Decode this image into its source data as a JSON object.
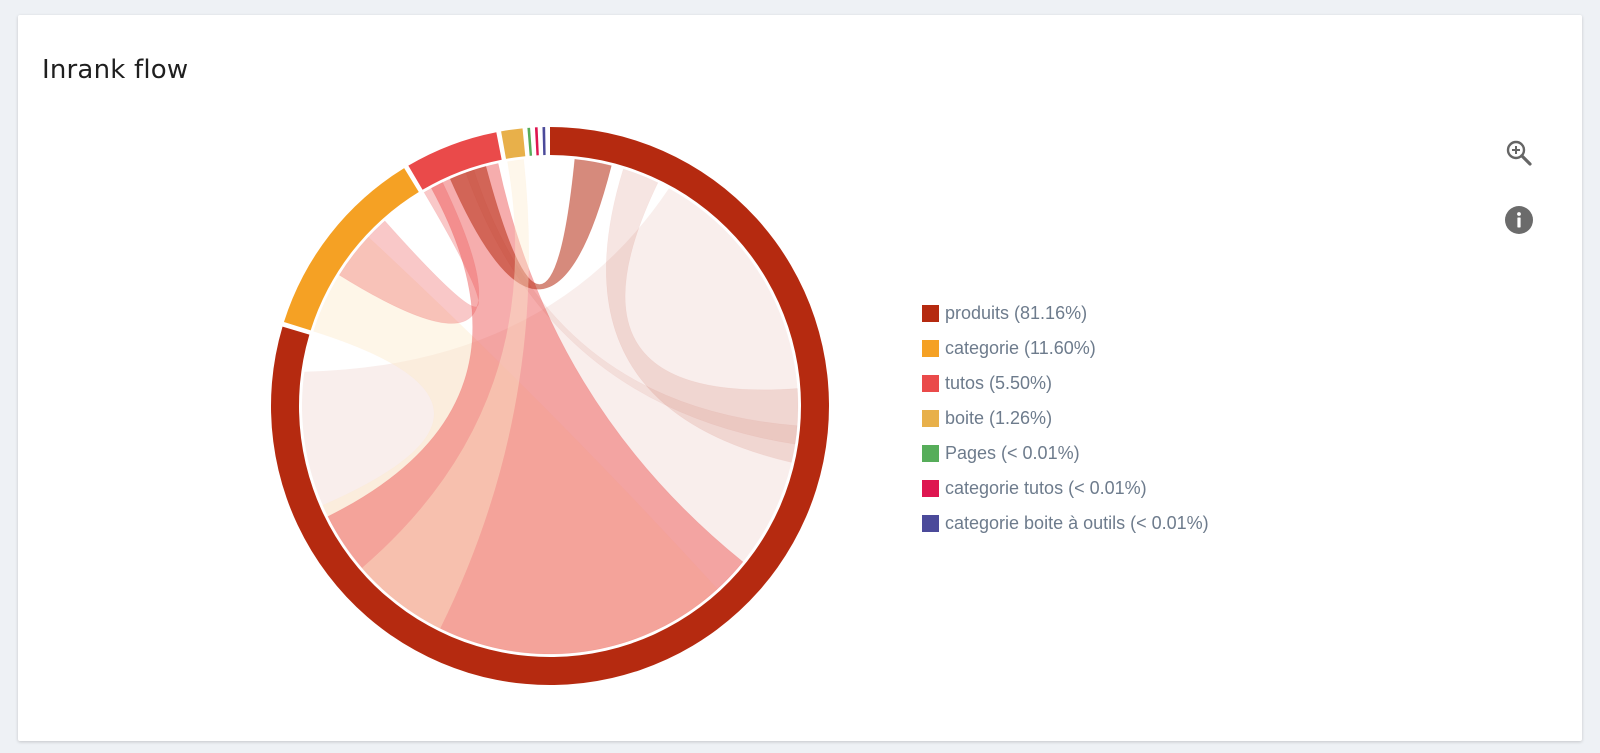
{
  "card": {
    "title": "Inrank flow"
  },
  "legend": {
    "items": [
      {
        "label": "produits (81.16%)",
        "color": "#b52a10"
      },
      {
        "label": "categorie (11.60%)",
        "color": "#f5a124"
      },
      {
        "label": "tutos (5.50%)",
        "color": "#ea4a4a"
      },
      {
        "label": "boite (1.26%)",
        "color": "#e8b04a"
      },
      {
        "label": "Pages (< 0.01%)",
        "color": "#56ad5a"
      },
      {
        "label": "categorie tutos (< 0.01%)",
        "color": "#de1650"
      },
      {
        "label": "categorie boite à outils (< 0.01%)",
        "color": "#4b4a9a"
      }
    ]
  },
  "toolbar": {
    "zoom_icon": "zoom-in-icon",
    "info_icon": "info-icon"
  },
  "chart_data": {
    "type": "chord",
    "title": "Inrank flow",
    "groups": [
      {
        "name": "produits",
        "percent": 81.16,
        "color": "#b52a10"
      },
      {
        "name": "categorie",
        "percent": 11.6,
        "color": "#f5a124"
      },
      {
        "name": "tutos",
        "percent": 5.5,
        "color": "#ea4a4a"
      },
      {
        "name": "boite",
        "percent": 1.26,
        "color": "#e8b04a"
      },
      {
        "name": "Pages",
        "percent": 0.01,
        "color": "#56ad5a"
      },
      {
        "name": "categorie tutos",
        "percent": 0.01,
        "color": "#de1650"
      },
      {
        "name": "categorie boite à outils",
        "percent": 0.01,
        "color": "#4b4a9a"
      }
    ],
    "legend_position": "right"
  }
}
